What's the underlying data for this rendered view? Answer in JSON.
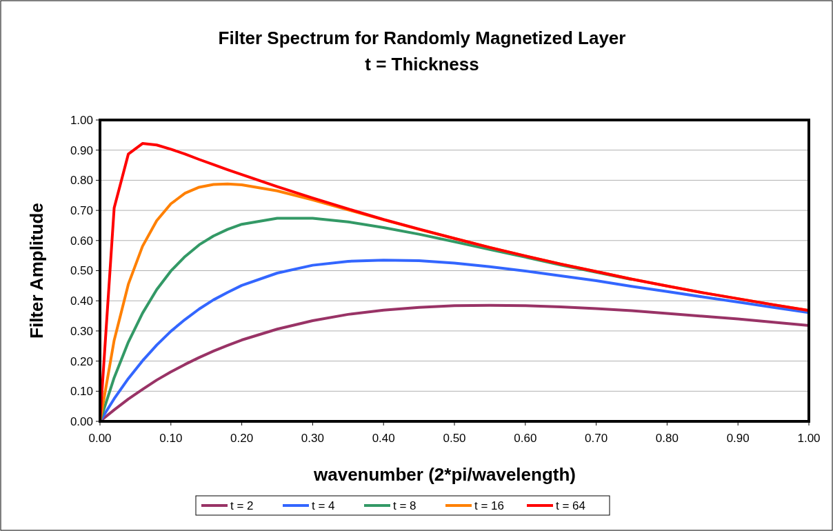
{
  "chart_data": {
    "type": "line",
    "title": "Filter Spectrum for Randomly Magnetized Layer",
    "subtitle": "t = Thickness",
    "xlabel": "wavenumber (2*pi/wavelength)",
    "ylabel": "Filter Amplitude",
    "x": [
      0,
      0.02,
      0.04,
      0.06,
      0.08,
      0.1,
      0.12,
      0.14,
      0.16,
      0.18,
      0.2,
      0.25,
      0.3,
      0.35,
      0.4,
      0.45,
      0.5,
      0.55,
      0.6,
      0.65,
      0.7,
      0.75,
      0.8,
      0.85,
      0.9,
      0.95,
      1.0
    ],
    "series": [
      {
        "name": "t = 2",
        "color": "#993366",
        "values": [
          0,
          0.038,
          0.074,
          0.106,
          0.137,
          0.164,
          0.189,
          0.212,
          0.233,
          0.252,
          0.27,
          0.306,
          0.334,
          0.355,
          0.369,
          0.378,
          0.384,
          0.385,
          0.384,
          0.38,
          0.374,
          0.367,
          0.358,
          0.349,
          0.34,
          0.329,
          0.318
        ]
      },
      {
        "name": "t = 4",
        "color": "#3366ff",
        "values": [
          0,
          0.075,
          0.142,
          0.201,
          0.253,
          0.299,
          0.338,
          0.373,
          0.403,
          0.428,
          0.451,
          0.492,
          0.518,
          0.531,
          0.535,
          0.533,
          0.525,
          0.513,
          0.499,
          0.483,
          0.467,
          0.448,
          0.431,
          0.413,
          0.396,
          0.378,
          0.361
        ]
      },
      {
        "name": "t = 8",
        "color": "#339966",
        "values": [
          0,
          0.145,
          0.263,
          0.359,
          0.437,
          0.499,
          0.547,
          0.586,
          0.615,
          0.637,
          0.654,
          0.674,
          0.674,
          0.662,
          0.643,
          0.621,
          0.596,
          0.57,
          0.545,
          0.519,
          0.495,
          0.471,
          null,
          null,
          null,
          null,
          null
        ]
      },
      {
        "name": "t = 16",
        "color": "#ff8000",
        "values": [
          0,
          0.269,
          0.455,
          0.581,
          0.666,
          0.722,
          0.757,
          0.777,
          0.786,
          0.788,
          0.785,
          0.765,
          0.735,
          0.702,
          0.669,
          0.637,
          0.607,
          0.577,
          0.549,
          0.522,
          0.497,
          0.472,
          0.449,
          0.427,
          0.407,
          0.387,
          0.368
        ]
      },
      {
        "name": "t = 64",
        "color": "#ff0000",
        "values": [
          0,
          0.708,
          0.887,
          0.922,
          0.917,
          0.903,
          0.887,
          0.869,
          0.852,
          0.835,
          0.819,
          0.779,
          0.741,
          0.705,
          0.67,
          0.638,
          0.607,
          0.577,
          0.549,
          0.522,
          0.497,
          0.472,
          0.449,
          0.427,
          0.407,
          0.387,
          0.368
        ]
      }
    ],
    "xlim": [
      0,
      1
    ],
    "ylim": [
      0,
      1
    ],
    "xticks": [
      {
        "value": 0,
        "label": "0.00"
      },
      {
        "value": 0.1,
        "label": "0.10"
      },
      {
        "value": 0.2,
        "label": "0.20"
      },
      {
        "value": 0.3,
        "label": "0.30"
      },
      {
        "value": 0.4,
        "label": "0.40"
      },
      {
        "value": 0.5,
        "label": "0.50"
      },
      {
        "value": 0.6,
        "label": "0.60"
      },
      {
        "value": 0.7,
        "label": "0.70"
      },
      {
        "value": 0.8,
        "label": "0.80"
      },
      {
        "value": 0.9,
        "label": "0.90"
      },
      {
        "value": 1,
        "label": "1.00"
      }
    ],
    "yticks": [
      {
        "value": 0,
        "label": "0.00"
      },
      {
        "value": 0.1,
        "label": "0.10"
      },
      {
        "value": 0.2,
        "label": "0.20"
      },
      {
        "value": 0.3,
        "label": "0.30"
      },
      {
        "value": 0.4,
        "label": "0.40"
      },
      {
        "value": 0.5,
        "label": "0.50"
      },
      {
        "value": 0.6,
        "label": "0.60"
      },
      {
        "value": 0.7,
        "label": "0.70"
      },
      {
        "value": 0.8,
        "label": "0.80"
      },
      {
        "value": 0.9,
        "label": "0.90"
      },
      {
        "value": 1,
        "label": "1.00"
      }
    ],
    "grid": "y",
    "legend": "bottom",
    "marker": "none",
    "line_style": "solid"
  }
}
